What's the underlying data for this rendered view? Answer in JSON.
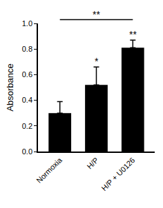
{
  "chart_data": {
    "type": "bar",
    "y_label": "Absorbance",
    "categories": [
      "Normoxia",
      "H/P",
      "H/P + U0126"
    ],
    "values": [
      0.3,
      0.52,
      0.81
    ],
    "error": [
      0.09,
      0.14,
      0.06
    ],
    "color": "#000000",
    "ylim": [
      0,
      1
    ],
    "yticks": [
      {
        "value": 0,
        "label": "0.0"
      },
      0.2,
      0.4,
      0.6,
      0.8,
      {
        "value": 1,
        "label": "1.0"
      }
    ],
    "grid": false,
    "annotations": [
      {
        "category": "H/P",
        "text": "*"
      },
      {
        "category": "H/P + U0126",
        "text": "**"
      }
    ],
    "brackets": [
      {
        "from": "Normoxia",
        "to": "H/P + U0126",
        "text": "**"
      }
    ]
  }
}
